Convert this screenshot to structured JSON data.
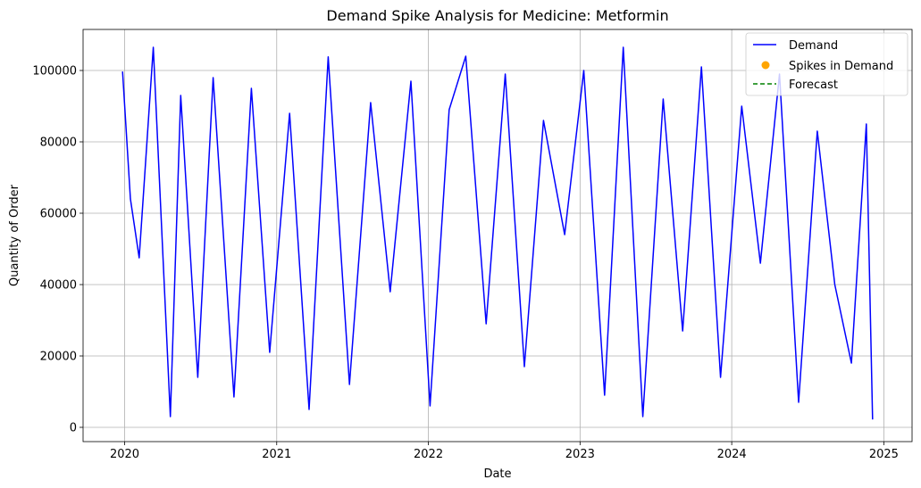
{
  "chart_data": {
    "type": "line",
    "title": "Demand Spike Analysis for Medicine: Metformin",
    "xlabel": "Date",
    "ylabel": "Quantity of Order",
    "xlim": [
      "2019-09-23",
      "2025-03-10"
    ],
    "ylim": [
      -4000,
      111500
    ],
    "x_ticks": [
      "2020",
      "2021",
      "2022",
      "2023",
      "2024",
      "2025"
    ],
    "y_ticks": [
      0,
      20000,
      40000,
      60000,
      80000,
      100000
    ],
    "grid": true,
    "legend_position": "top-right",
    "series": [
      {
        "name": "Demand",
        "kind": "line",
        "color": "#0000ff",
        "x": [
          "2019-12-27",
          "2020-01-15",
          "2020-02-05",
          "2020-03-10",
          "2020-04-20",
          "2020-05-15",
          "2020-06-25",
          "2020-08-01",
          "2020-09-20",
          "2020-11-01",
          "2020-12-15",
          "2021-02-01",
          "2021-03-20",
          "2021-05-05",
          "2021-06-25",
          "2021-08-15",
          "2021-10-01",
          "2021-11-20",
          "2022-01-05",
          "2022-02-20",
          "2022-04-01",
          "2022-05-20",
          "2022-07-05",
          "2022-08-20",
          "2022-10-05",
          "2022-11-25",
          "2023-01-10",
          "2023-03-01",
          "2023-04-15",
          "2023-06-01",
          "2023-07-20",
          "2023-09-05",
          "2023-10-20",
          "2023-12-05",
          "2024-01-25",
          "2024-03-10",
          "2024-04-25",
          "2024-06-10",
          "2024-07-25",
          "2024-09-05",
          "2024-10-15",
          "2024-11-20",
          "2024-12-05"
        ],
        "y": [
          99700,
          64000,
          47500,
          106500,
          3000,
          93000,
          14000,
          98000,
          8500,
          95000,
          21000,
          88000,
          5000,
          103800,
          12000,
          91000,
          38000,
          97000,
          6000,
          89000,
          104000,
          29000,
          99000,
          17000,
          86000,
          54000,
          100000,
          9000,
          106500,
          3000,
          92000,
          27000,
          101000,
          14000,
          90000,
          46000,
          99000,
          7000,
          83000,
          40000,
          18000,
          85000,
          2200
        ]
      },
      {
        "name": "Spikes in Demand",
        "kind": "points",
        "color": "#ffa500",
        "x": [],
        "y": []
      },
      {
        "name": "Forecast",
        "kind": "dashed-line",
        "color": "#008000",
        "x": [],
        "y": []
      }
    ]
  }
}
